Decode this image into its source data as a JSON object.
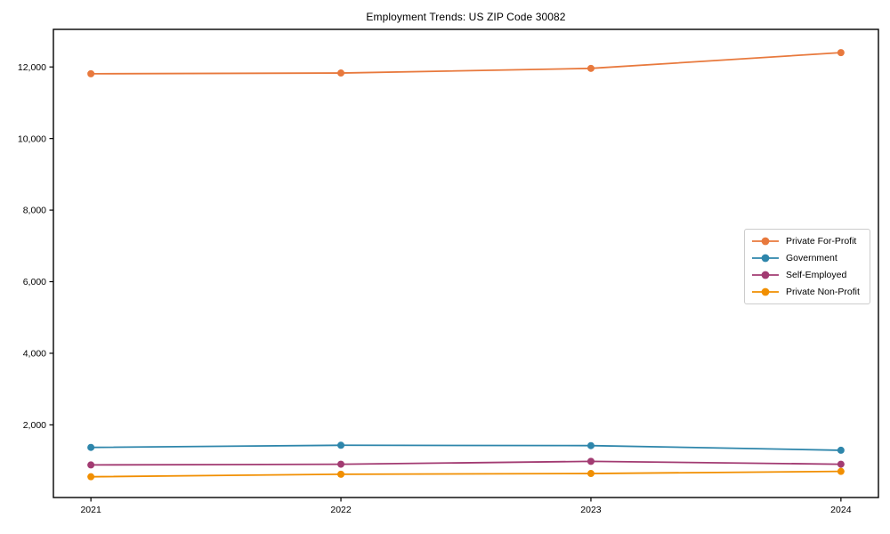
{
  "page": {
    "background_color": "#ffffff"
  },
  "chart_data": {
    "type": "line",
    "title": "Employment Trends: US ZIP Code 30082",
    "xlabel": "",
    "ylabel": "",
    "x": [
      2021,
      2022,
      2023,
      2024
    ],
    "x_tick_labels": [
      "2021",
      "2022",
      "2023",
      "2024"
    ],
    "y_ticks": [
      {
        "value": 2000,
        "label": "2,000"
      },
      {
        "value": 4000,
        "label": "4,000"
      },
      {
        "value": 6000,
        "label": "6,000"
      },
      {
        "value": 8000,
        "label": "8,000"
      },
      {
        "value": 10000,
        "label": "10,000"
      },
      {
        "value": 12000,
        "label": "12,000"
      }
    ],
    "xlim": [
      2020.85,
      2024.15
    ],
    "ylim": [
      -30,
      13050
    ],
    "grid": false,
    "legend_position": "middle-right",
    "legend_border_color": "#cccccc",
    "axis_color": "#000000",
    "series": [
      {
        "name": "Private For-Profit",
        "color": "#E8793D",
        "values": [
          11810,
          11830,
          11960,
          12400
        ]
      },
      {
        "name": "Government",
        "color": "#2E86AB",
        "values": [
          1370,
          1430,
          1420,
          1290
        ]
      },
      {
        "name": "Self-Employed",
        "color": "#A23B72",
        "values": [
          880,
          900,
          980,
          900
        ]
      },
      {
        "name": "Private Non-Profit",
        "color": "#F18F01",
        "values": [
          550,
          620,
          640,
          700
        ]
      }
    ]
  }
}
